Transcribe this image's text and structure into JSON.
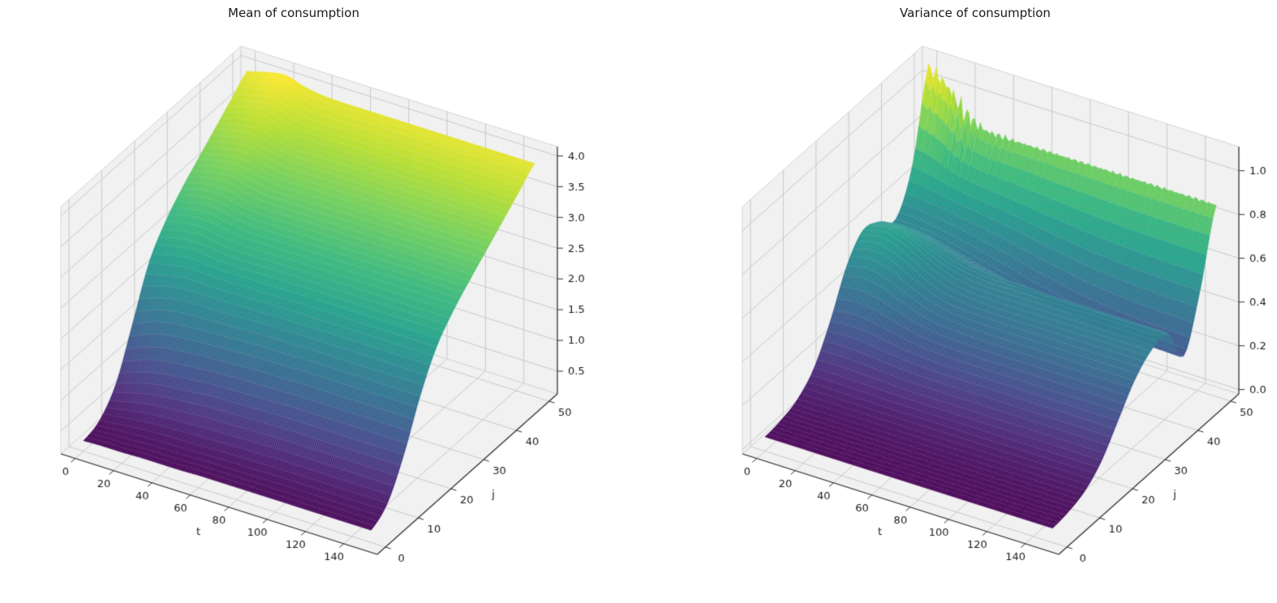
{
  "colors": {
    "background": "#ffffff",
    "pane": "#f1f1f1",
    "pane_edge": "#d6d6d6",
    "grid": "#c9c9c9",
    "axis_line": "#2f2f2f",
    "text": "#1a1a1a"
  },
  "viridis": [
    "#440154",
    "#482878",
    "#3e4a89",
    "#31688e",
    "#26828e",
    "#1f9e89",
    "#35b779",
    "#6ece58",
    "#b5de2b",
    "#fde725"
  ],
  "chart_data": [
    {
      "type": "surface",
      "title": "Mean of consumption",
      "xlabel": "t",
      "ylabel": "j",
      "x_tick_labels": [
        "0",
        "20",
        "40",
        "60",
        "80",
        "100",
        "120",
        "140"
      ],
      "y_tick_labels": [
        "0",
        "10",
        "20",
        "30",
        "40",
        "50"
      ],
      "z_tick_labels": [
        "0.5",
        "1.0",
        "1.5",
        "2.0",
        "2.5",
        "3.0",
        "3.5",
        "4.0"
      ],
      "xlim": [
        -7.5,
        157.5
      ],
      "ylim": [
        -2.5,
        52.5
      ],
      "zlim": [
        0.13,
        4.15
      ],
      "view": {
        "elev": 30,
        "azim": -60
      },
      "colormap": "viridis",
      "grid_on": true,
      "legend": "none",
      "grid_t": [
        0,
        10,
        20,
        30,
        40,
        50,
        60,
        70,
        80,
        90,
        100,
        110,
        120,
        130,
        140,
        150
      ],
      "grid_j": [
        0,
        5,
        10,
        15,
        20,
        25,
        30,
        35,
        40,
        45,
        50
      ],
      "noise_amp": 0,
      "z_values": [
        [
          0.3,
          0.4,
          0.76,
          1.49,
          2.24,
          2.67,
          2.97,
          3.22,
          3.46,
          3.7,
          3.94
        ],
        [
          0.31,
          0.43,
          0.86,
          1.62,
          2.31,
          2.75,
          3.05,
          3.29,
          3.54,
          3.78,
          4.02
        ],
        [
          0.31,
          0.46,
          0.94,
          1.7,
          2.36,
          2.77,
          3.07,
          3.33,
          3.58,
          3.83,
          4.07
        ],
        [
          0.32,
          0.48,
          0.98,
          1.73,
          2.35,
          2.72,
          3.0,
          3.26,
          3.5,
          3.74,
          3.98
        ],
        [
          0.32,
          0.49,
          1.01,
          1.75,
          2.34,
          2.69,
          2.96,
          3.2,
          3.44,
          3.68,
          3.93
        ],
        [
          0.32,
          0.5,
          1.04,
          1.76,
          2.35,
          2.69,
          2.96,
          3.2,
          3.44,
          3.68,
          3.92
        ],
        [
          0.33,
          0.51,
          1.05,
          1.78,
          2.35,
          2.7,
          2.96,
          3.2,
          3.44,
          3.68,
          3.92
        ],
        [
          0.33,
          0.52,
          1.06,
          1.79,
          2.36,
          2.7,
          2.96,
          3.2,
          3.44,
          3.68,
          3.92
        ],
        [
          0.33,
          0.52,
          1.07,
          1.79,
          2.36,
          2.7,
          2.96,
          3.2,
          3.44,
          3.68,
          3.92
        ],
        [
          0.33,
          0.53,
          1.08,
          1.8,
          2.36,
          2.7,
          2.96,
          3.2,
          3.44,
          3.68,
          3.92
        ],
        [
          0.33,
          0.53,
          1.08,
          1.8,
          2.36,
          2.7,
          2.96,
          3.2,
          3.44,
          3.68,
          3.92
        ],
        [
          0.33,
          0.53,
          1.08,
          1.8,
          2.36,
          2.7,
          2.96,
          3.2,
          3.44,
          3.68,
          3.92
        ],
        [
          0.33,
          0.53,
          1.08,
          1.8,
          2.36,
          2.7,
          2.96,
          3.2,
          3.44,
          3.68,
          3.92
        ],
        [
          0.33,
          0.53,
          1.08,
          1.8,
          2.36,
          2.7,
          2.96,
          3.2,
          3.44,
          3.68,
          3.92
        ],
        [
          0.33,
          0.53,
          1.08,
          1.8,
          2.36,
          2.7,
          2.96,
          3.2,
          3.44,
          3.68,
          3.92
        ],
        [
          0.33,
          0.53,
          1.08,
          1.8,
          2.36,
          2.7,
          2.96,
          3.2,
          3.44,
          3.68,
          3.92
        ]
      ]
    },
    {
      "type": "surface",
      "title": "Variance of consumption",
      "xlabel": "t",
      "ylabel": "j",
      "x_tick_labels": [
        "0",
        "20",
        "40",
        "60",
        "80",
        "100",
        "120",
        "140"
      ],
      "y_tick_labels": [
        "0",
        "10",
        "20",
        "30",
        "40",
        "50"
      ],
      "z_tick_labels": [
        "0.0",
        "0.2",
        "0.4",
        "0.6",
        "0.8",
        "1.0"
      ],
      "xlim": [
        -7.5,
        157.5
      ],
      "ylim": [
        -2.5,
        52.5
      ],
      "zlim": [
        -0.02,
        1.11
      ],
      "view": {
        "elev": 30,
        "azim": -60
      },
      "colormap": "viridis",
      "grid_on": true,
      "legend": "none",
      "grid_t": [
        0,
        10,
        20,
        30,
        40,
        50,
        60,
        70,
        80,
        90,
        100,
        110,
        120,
        130,
        140,
        150
      ],
      "grid_j": [
        0,
        5,
        10,
        15,
        20,
        25,
        30,
        35,
        40,
        45,
        50
      ],
      "noise_amp": 0.016,
      "z_values": [
        [
          0.045,
          0.056,
          0.085,
          0.16,
          0.309,
          0.494,
          0.591,
          0.562,
          0.508,
          0.682,
          1.058
        ],
        [
          0.045,
          0.056,
          0.086,
          0.162,
          0.315,
          0.511,
          0.613,
          0.574,
          0.505,
          0.667,
          1.004
        ],
        [
          0.045,
          0.056,
          0.086,
          0.16,
          0.309,
          0.494,
          0.591,
          0.561,
          0.495,
          0.645,
          0.898
        ],
        [
          0.045,
          0.056,
          0.085,
          0.158,
          0.295,
          0.455,
          0.542,
          0.532,
          0.475,
          0.63,
          0.861
        ],
        [
          0.045,
          0.056,
          0.085,
          0.155,
          0.282,
          0.419,
          0.497,
          0.505,
          0.454,
          0.62,
          0.855
        ],
        [
          0.045,
          0.056,
          0.085,
          0.154,
          0.274,
          0.398,
          0.47,
          0.488,
          0.43,
          0.608,
          0.855
        ],
        [
          0.045,
          0.056,
          0.085,
          0.154,
          0.271,
          0.39,
          0.459,
          0.478,
          0.408,
          0.595,
          0.855
        ],
        [
          0.045,
          0.056,
          0.085,
          0.154,
          0.27,
          0.387,
          0.456,
          0.476,
          0.383,
          0.58,
          0.855
        ],
        [
          0.045,
          0.056,
          0.085,
          0.154,
          0.27,
          0.386,
          0.455,
          0.475,
          0.363,
          0.568,
          0.855
        ],
        [
          0.045,
          0.056,
          0.085,
          0.154,
          0.27,
          0.386,
          0.455,
          0.473,
          0.343,
          0.555,
          0.855
        ],
        [
          0.045,
          0.056,
          0.085,
          0.154,
          0.27,
          0.386,
          0.455,
          0.472,
          0.328,
          0.547,
          0.855
        ],
        [
          0.045,
          0.056,
          0.085,
          0.154,
          0.27,
          0.386,
          0.455,
          0.472,
          0.318,
          0.54,
          0.855
        ],
        [
          0.045,
          0.056,
          0.085,
          0.154,
          0.27,
          0.386,
          0.455,
          0.471,
          0.31,
          0.535,
          0.855
        ],
        [
          0.045,
          0.056,
          0.085,
          0.154,
          0.27,
          0.386,
          0.455,
          0.471,
          0.304,
          0.532,
          0.855
        ],
        [
          0.045,
          0.056,
          0.085,
          0.154,
          0.27,
          0.386,
          0.455,
          0.471,
          0.301,
          0.53,
          0.855
        ],
        [
          0.045,
          0.056,
          0.085,
          0.154,
          0.27,
          0.386,
          0.455,
          0.471,
          0.298,
          0.528,
          0.855
        ]
      ]
    }
  ]
}
